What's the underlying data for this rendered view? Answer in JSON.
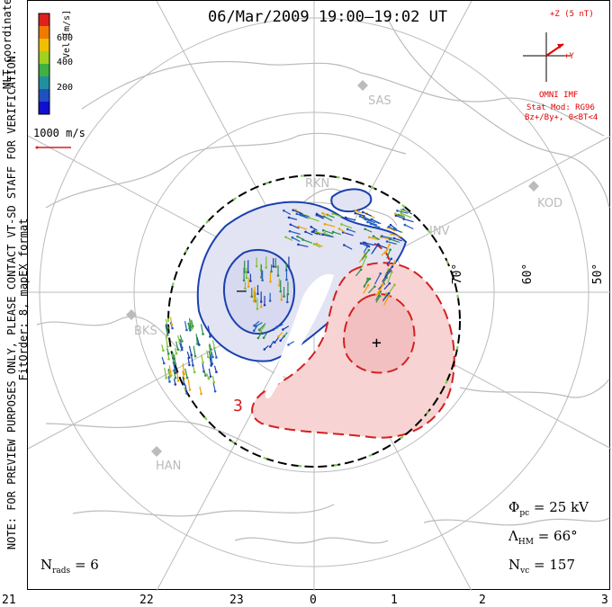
{
  "title": "06/Mar/2009 19:00–19:02 UT",
  "vertical_note": [
    "NOTE: FOR PREVIEW PURPOSES ONLY, PLEASE CONTACT VT-SD STAFF FOR VERIFICATION.",
    "FitOrder: 8, mapEX format"
  ],
  "colorbar": {
    "label": "Vel [m/s]",
    "coords": "MLT coordinates",
    "ticks": [
      "600",
      "400",
      "200"
    ],
    "colors": [
      "#e02020",
      "#f07a00",
      "#f0c000",
      "#a0d020",
      "#40b040",
      "#2090a0",
      "#2050c0",
      "#1010d0"
    ]
  },
  "scale_vector": "1000 m/s",
  "imf": {
    "z_label": "+Z (5 nT)",
    "y_label": "+Y",
    "source": "OMNI IMF",
    "stat_mod": "Stat Mod: RG96",
    "condition": "Bz+/By+, 0<BT<4",
    "color": "#e00000"
  },
  "stats": {
    "phi_label": "Φ",
    "phi_sub": "pc",
    "phi_value": " = 25 kV",
    "lambda_label": "Λ",
    "lambda_sub": "HM",
    "lambda_value": " = 66°",
    "nvc_label": "N",
    "nvc_sub": "vc",
    "nvc_value": " = 157",
    "nrads_label": "N",
    "nrads_sub": "rads",
    "nrads_value": " = 6"
  },
  "mlt_labels": [
    "21",
    "22",
    "23",
    "0",
    "1",
    "2",
    "3"
  ],
  "lat_labels": [
    "70°",
    "60°",
    "50°"
  ],
  "stations": [
    "SAS",
    "RKN",
    "KOD",
    "INV",
    "BKS",
    "HAN"
  ],
  "markers": {
    "negative": "–",
    "positive": "+"
  },
  "contour_label": "3",
  "colors": {
    "negative": "#1a3fb0",
    "positive": "#d42020",
    "map": "#bbbbbb"
  }
}
